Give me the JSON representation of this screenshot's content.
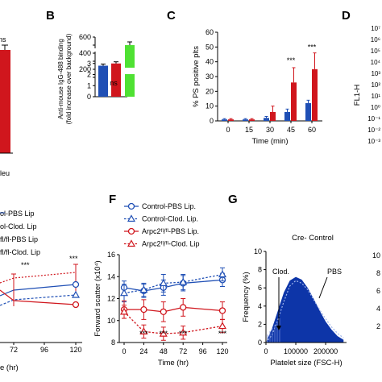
{
  "colors": {
    "blue": "#1f4fb5",
    "red": "#d0161d",
    "green": "#4fe133",
    "navy": "#0a2a8a",
    "black": "#000000"
  },
  "panel_labels": {
    "B": "B",
    "C": "C",
    "D": "D",
    "F": "F",
    "G": "G"
  },
  "fragments": {
    "a_ns": "ns",
    "a_xcat": "leu",
    "d_ylabel": "FL1-H",
    "d_ticks": [
      "10⁷",
      "10⁶",
      "10⁵",
      "10⁴",
      "10³",
      "10²",
      "10¹",
      "10⁰",
      "10⁻¹",
      "10⁻²",
      "10⁻³"
    ],
    "e_legend": [
      "ol-PBS Lip",
      "ol-Clod. Lip",
      "fl/fl-PBS Lip",
      "fl/fl-Clod. Lip"
    ],
    "e_xticks": [
      "72",
      "96",
      "120"
    ],
    "e_xlabel": "e (hr)",
    "e_stars": [
      "***",
      "***"
    ],
    "g2_ticks": [
      "10",
      "8",
      "6",
      "4",
      "2"
    ]
  },
  "chart_data": [
    {
      "id": "B",
      "type": "bar",
      "ylabel": "Anti-mouse IgG-488 binding\n(fold increase over background)",
      "categories": [
        "",
        "",
        ""
      ],
      "values": [
        2.8,
        3.0,
        500
      ],
      "errors": [
        0.15,
        0.15,
        40
      ],
      "colors": [
        "#1f4fb5",
        "#d0161d",
        "#4fe133"
      ],
      "broken_axis": true,
      "yticks_lower": [
        "0",
        "1",
        "2",
        "3",
        "4"
      ],
      "yticks_upper": [
        "100",
        "200",
        "300",
        "400",
        "500",
        "600"
      ],
      "annotations": [
        "ns"
      ]
    },
    {
      "id": "C",
      "type": "bar",
      "ylabel": "% PS positive plts",
      "xlabel": "Time (min)",
      "categories": [
        "0",
        "15",
        "30",
        "45",
        "60"
      ],
      "series": [
        {
          "values": [
            1,
            1,
            2,
            6,
            12
          ],
          "errors": [
            0.5,
            0.5,
            1,
            2,
            2
          ],
          "color": "#1f4fb5"
        },
        {
          "values": [
            1,
            1,
            6,
            26,
            35
          ],
          "errors": [
            0.5,
            0.5,
            4,
            10,
            11
          ],
          "color": "#d0161d"
        }
      ],
      "ylim": [
        0,
        60
      ],
      "yticks": [
        "0",
        "10",
        "20",
        "30",
        "40",
        "50",
        "60"
      ],
      "annotations": [
        "***",
        "***",
        "***"
      ]
    },
    {
      "id": "F",
      "type": "line",
      "ylabel": "Forward scatter (x10⁴)",
      "xlabel": "Time (hr)",
      "x": [
        0,
        24,
        48,
        72,
        120
      ],
      "xticks": [
        "0",
        "24",
        "48",
        "72",
        "96",
        "120"
      ],
      "yticks": [
        "8",
        "10",
        "12",
        "14",
        "16"
      ],
      "ylim": [
        8,
        16
      ],
      "series": [
        {
          "name": "Control-PBS Lip.",
          "values": [
            13.0,
            12.7,
            13.0,
            13.4,
            13.7
          ],
          "errors": [
            0.6,
            0.6,
            0.7,
            0.7,
            0.6
          ],
          "color": "#1f4fb5",
          "marker": "circle",
          "dash": false
        },
        {
          "name": "Control-Clod. Lip.",
          "values": [
            12.5,
            12.8,
            13.4,
            13.5,
            14.2
          ],
          "errors": [
            0.8,
            0.6,
            0.8,
            0.7,
            0.6
          ],
          "color": "#1f4fb5",
          "marker": "triangle",
          "dash": true
        },
        {
          "name": "Arpc2ᶠˡ/ᶠˡ-PBS Lip.",
          "values": [
            11.0,
            11.0,
            10.8,
            11.2,
            10.9
          ],
          "errors": [
            0.8,
            0.9,
            0.9,
            0.8,
            0.8
          ],
          "color": "#d0161d",
          "marker": "circle",
          "dash": false
        },
        {
          "name": "Arpc2ᶠˡ/ᶠˡ-Clod. Lip",
          "values": [
            10.8,
            9.0,
            8.8,
            8.9,
            9.5
          ],
          "errors": [
            0.6,
            0.6,
            0.6,
            0.6,
            0.6
          ],
          "color": "#d0161d",
          "marker": "triangle",
          "dash": true
        }
      ],
      "annotations": [
        "***",
        "***",
        "***",
        "***"
      ]
    },
    {
      "id": "G",
      "type": "area",
      "title": "Cre- Control",
      "ylabel": "Frequency (%)",
      "xlabel": "Platelet size (FSC-H)",
      "xticks": [
        "0",
        "100000",
        "200000"
      ],
      "yticks": [
        "0",
        "2",
        "4",
        "6",
        "8",
        "10"
      ],
      "ylim": [
        0,
        10
      ],
      "series": [
        {
          "name": "PBS",
          "x": [
            0,
            20000,
            40000,
            60000,
            80000,
            100000,
            120000,
            140000,
            160000,
            180000,
            200000,
            220000,
            240000,
            260000
          ],
          "values": [
            0,
            1.5,
            3.5,
            5.5,
            6.8,
            7.2,
            6.9,
            6.0,
            4.8,
            3.5,
            2.3,
            1.4,
            0.7,
            0.3
          ]
        },
        {
          "name": "Clod.",
          "x": [
            0,
            20000,
            40000,
            60000,
            80000,
            100000,
            120000,
            140000,
            160000,
            180000,
            200000,
            220000,
            240000,
            260000
          ],
          "values": [
            0,
            0.8,
            2.5,
            4.5,
            6.2,
            6.8,
            6.5,
            5.8,
            4.7,
            3.6,
            2.6,
            1.7,
            1.0,
            0.5
          ]
        }
      ]
    }
  ]
}
